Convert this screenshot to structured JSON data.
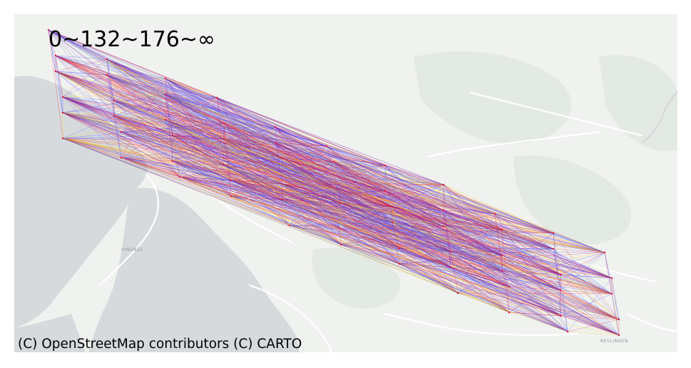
{
  "legend": {
    "text": "0~132~176~∞",
    "thresholds": [
      0,
      132,
      176,
      "∞"
    ],
    "colors": [
      "#3a3aff",
      "#e8103a",
      "#f6c800"
    ]
  },
  "attribution": "(C) OpenStreetMap contributors (C) CARTO",
  "basemap": {
    "land_color": "#f0f2ef",
    "water_color": "#d6dadc",
    "park_color": "#e3e9e3",
    "road_color": "#ffffff",
    "place_labels": [
      "VINGNES",
      "REVLINGEN"
    ]
  },
  "network": {
    "node_count": 66,
    "edges": "complete graph between all nodes"
  }
}
